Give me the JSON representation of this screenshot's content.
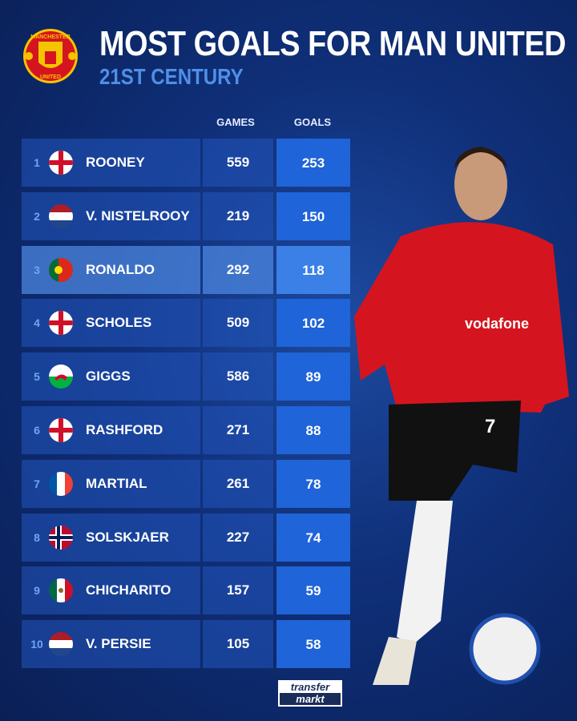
{
  "header": {
    "title": "MOST GOALS FOR MAN UNITED",
    "subtitle": "21ST CENTURY",
    "crest_text": [
      "MANCHESTER",
      "UNITED"
    ]
  },
  "chart_data": {
    "type": "table",
    "columns": [
      "GAMES",
      "GOALS"
    ],
    "rows": [
      {
        "rank": "1",
        "name": "ROONEY",
        "flag": "england",
        "games": "559",
        "goals": "253"
      },
      {
        "rank": "2",
        "name": "V. NISTELROOY",
        "flag": "netherlands",
        "games": "219",
        "goals": "150"
      },
      {
        "rank": "3",
        "name": "RONALDO",
        "flag": "portugal",
        "games": "292",
        "goals": "118",
        "highlighted": true
      },
      {
        "rank": "4",
        "name": "SCHOLES",
        "flag": "england",
        "games": "509",
        "goals": "102"
      },
      {
        "rank": "5",
        "name": "GIGGS",
        "flag": "wales",
        "games": "586",
        "goals": "89"
      },
      {
        "rank": "6",
        "name": "RASHFORD",
        "flag": "england",
        "games": "271",
        "goals": "88"
      },
      {
        "rank": "7",
        "name": "MARTIAL",
        "flag": "france",
        "games": "261",
        "goals": "78"
      },
      {
        "rank": "8",
        "name": "SOLSKJAER",
        "flag": "norway",
        "games": "227",
        "goals": "74"
      },
      {
        "rank": "9",
        "name": "CHICHARITO",
        "flag": "mexico",
        "games": "157",
        "goals": "59"
      },
      {
        "rank": "10",
        "name": "V. PERSIE",
        "flag": "netherlands",
        "games": "105",
        "goals": "58"
      }
    ]
  },
  "player": {
    "shirt_sponsor": "vodafone",
    "shirt_number": "7"
  },
  "footer": {
    "logo_line1": "transfer",
    "logo_line2": "markt"
  },
  "colors": {
    "background": "#0f2f78",
    "goals_column": "#1f64d8",
    "subtitle": "#4f8fe8",
    "shirt": "#d4151f"
  }
}
